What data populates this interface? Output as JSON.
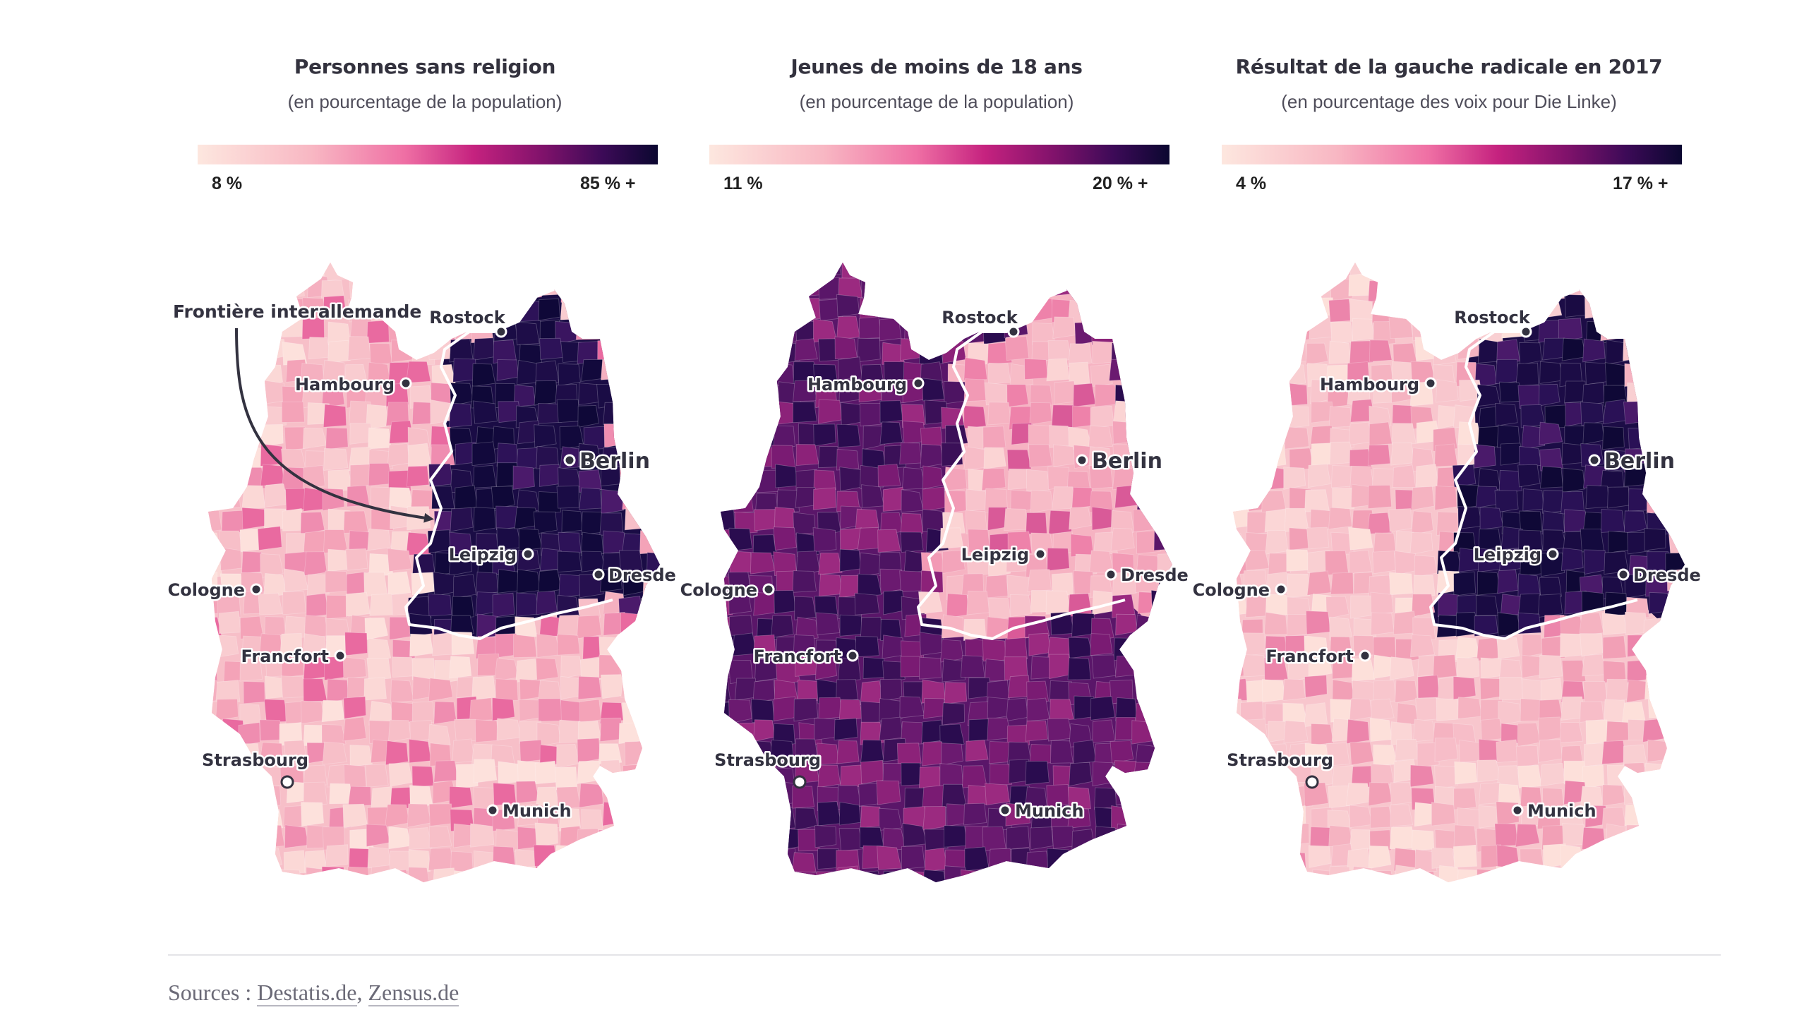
{
  "panels": [
    {
      "title": "Personnes sans religion",
      "subtitle": "(en pourcentage de la population)",
      "legend_min": "8 %",
      "legend_max": "85 % +",
      "west_colors": [
        "#f7bfc8",
        "#f4a3b8",
        "#f9ccd0",
        "#ef8db0",
        "#fbd8d6",
        "#f5b0c0",
        "#e96aa0",
        "#fde1dc"
      ],
      "east_colors": [
        "#1a0c45",
        "#0f0838",
        "#26104f",
        "#3a1560",
        "#12093c",
        "#2d1258",
        "#4b1a6b",
        "#1e0d48"
      ]
    },
    {
      "title": "Jeunes de moins de 18 ans",
      "subtitle": "(en pourcentage de la population)",
      "legend_min": "11 %",
      "legend_max": "20 % +",
      "west_colors": [
        "#5a1669",
        "#7a1b73",
        "#3b1058",
        "#9b2a80",
        "#6b1a70",
        "#2a0c4f",
        "#8c2279",
        "#4d1462"
      ],
      "east_colors": [
        "#f6b3c2",
        "#f8c4cc",
        "#f29ab5",
        "#fbd4d4",
        "#ee82aa",
        "#f7bcc7",
        "#f3a4ba",
        "#d95a98"
      ]
    },
    {
      "title": "Résultat de la gauche radicale en 2017",
      "subtitle": "(en pourcentage des voix pour Die Linke)",
      "legend_min": "4 %",
      "legend_max": "17 % +",
      "west_colors": [
        "#f8c6cd",
        "#fbd6d6",
        "#f5b3c1",
        "#f9cfd2",
        "#f2a0b6",
        "#fde0da",
        "#ec85ab",
        "#f7bdc8"
      ],
      "east_colors": [
        "#1c0c46",
        "#2a1156",
        "#140a3e",
        "#3b1561",
        "#241050",
        "#0f0836",
        "#4a1a6a",
        "#1a0b43"
      ]
    }
  ],
  "cities": [
    {
      "name": "Rostock"
    },
    {
      "name": "Hambourg"
    },
    {
      "name": "Berlin"
    },
    {
      "name": "Leipzig"
    },
    {
      "name": "Dresde"
    },
    {
      "name": "Cologne"
    },
    {
      "name": "Francfort"
    },
    {
      "name": "Strasbourg"
    },
    {
      "name": "Munich"
    }
  ],
  "annotation": "Frontière interallemande",
  "sources": {
    "prefix": "Sources : ",
    "links": [
      "Destatis.de",
      "Zensus.de"
    ],
    "separator": ", "
  }
}
